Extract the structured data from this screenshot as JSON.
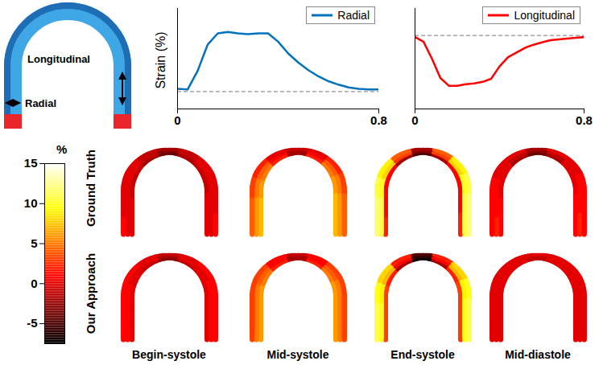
{
  "chart_data": [
    {
      "type": "schematic",
      "annotations": [
        "Radial",
        "Longitudinal"
      ]
    },
    {
      "type": "line",
      "ylabel": "Strain (%)",
      "x": [
        0,
        0.04,
        0.08,
        0.12,
        0.16,
        0.2,
        0.24,
        0.28,
        0.32,
        0.36,
        0.4,
        0.44,
        0.48,
        0.52,
        0.56,
        0.6,
        0.64,
        0.68,
        0.72,
        0.76,
        0.8
      ],
      "series": [
        {
          "name": "Radial",
          "color": "#0072bd",
          "values": [
            0.4,
            0.3,
            3.0,
            6.8,
            8.4,
            8.6,
            8.4,
            8.3,
            8.4,
            8.4,
            7.2,
            5.5,
            4.2,
            3.1,
            2.2,
            1.5,
            1.0,
            0.6,
            0.4,
            0.3,
            0.3
          ]
        }
      ],
      "xlim": [
        0,
        0.8
      ],
      "xticks": [
        0,
        0.8
      ],
      "ylim": [
        -2.5,
        12
      ],
      "tick_labels": "x",
      "legend": "top-right",
      "reference_line": 0
    },
    {
      "type": "line",
      "x": [
        0,
        0.04,
        0.08,
        0.12,
        0.16,
        0.2,
        0.24,
        0.28,
        0.32,
        0.36,
        0.4,
        0.44,
        0.48,
        0.52,
        0.56,
        0.6,
        0.64,
        0.68,
        0.72,
        0.76,
        0.8
      ],
      "series": [
        {
          "name": "Longitudinal",
          "color": "#ff0000",
          "values": [
            -0.2,
            -0.8,
            -3.0,
            -5.5,
            -6.5,
            -6.5,
            -6.3,
            -6.2,
            -6.0,
            -5.6,
            -4.0,
            -2.8,
            -2.2,
            -1.6,
            -1.2,
            -0.9,
            -0.6,
            -0.5,
            -0.4,
            -0.3,
            -0.2
          ]
        }
      ],
      "xlim": [
        0,
        0.8
      ],
      "xticks": [
        0,
        0.8
      ],
      "ylim": [
        -9.5,
        3.5
      ],
      "tick_labels": "x",
      "legend": "top-right",
      "reference_line": 0
    },
    {
      "type": "heatmap",
      "rows": [
        "Ground Truth",
        "Our Approach"
      ],
      "columns": [
        "Begin-systole",
        "Mid-systole",
        "End-systole",
        "Mid-diastole"
      ],
      "cells": [
        [
          [
            [
              0,
              0,
              -1,
              -1,
              -2,
              -4,
              -2,
              -1,
              -1,
              0,
              0
            ],
            [
              0,
              0,
              0,
              0,
              -1,
              -3,
              -1,
              0,
              0,
              0,
              0
            ],
            [
              1,
              0,
              0,
              0,
              -1,
              -2,
              -1,
              0,
              0,
              0,
              1
            ]
          ],
          [
            [
              7,
              7,
              6,
              5,
              2,
              -2,
              2,
              5,
              6,
              7,
              7
            ],
            [
              6,
              6,
              5,
              4,
              1,
              -2,
              1,
              4,
              5,
              6,
              6
            ],
            [
              4,
              4,
              3,
              2,
              0,
              -1,
              0,
              2,
              3,
              4,
              4
            ]
          ],
          [
            [
              2,
              1,
              1,
              1,
              -2,
              -5,
              -2,
              1,
              1,
              1,
              2
            ],
            [
              11,
              11,
              10,
              8,
              3,
              -3,
              3,
              8,
              10,
              11,
              11
            ],
            [
              12,
              12,
              11,
              9,
              4,
              -2,
              4,
              9,
              11,
              12,
              12
            ]
          ],
          [
            [
              1,
              1,
              0,
              0,
              -2,
              -4,
              -2,
              0,
              0,
              1,
              1
            ],
            [
              2,
              1,
              1,
              0,
              -1,
              -3,
              -1,
              0,
              1,
              1,
              2
            ],
            [
              1,
              1,
              1,
              0,
              0,
              -2,
              0,
              0,
              1,
              1,
              1
            ]
          ]
        ],
        [
          [
            [
              0,
              0,
              0,
              0,
              -1,
              -3,
              -1,
              0,
              0,
              0,
              0
            ],
            [
              1,
              1,
              1,
              0,
              0,
              -2,
              0,
              0,
              1,
              1,
              1
            ],
            [
              1,
              1,
              1,
              1,
              0,
              -1,
              0,
              1,
              1,
              1,
              1
            ]
          ],
          [
            [
              6,
              6,
              6,
              5,
              2,
              -2,
              2,
              5,
              6,
              6,
              6
            ],
            [
              5,
              5,
              5,
              4,
              1,
              -2,
              1,
              4,
              5,
              5,
              5
            ],
            [
              3,
              3,
              3,
              3,
              1,
              -1,
              1,
              3,
              3,
              3,
              3
            ]
          ],
          [
            [
              3,
              3,
              3,
              2,
              -2,
              -7,
              -2,
              2,
              3,
              3,
              3
            ],
            [
              10,
              10,
              9,
              7,
              1,
              -6,
              1,
              7,
              9,
              10,
              10
            ],
            [
              11,
              11,
              10,
              8,
              2,
              -5,
              2,
              8,
              10,
              11,
              11
            ]
          ],
          [
            [
              0,
              0,
              0,
              0,
              0,
              -1,
              0,
              0,
              0,
              0,
              0
            ],
            [
              0,
              0,
              0,
              0,
              0,
              -1,
              0,
              0,
              0,
              0,
              0
            ],
            [
              0,
              0,
              0,
              0,
              0,
              0,
              0,
              0,
              0,
              0,
              0
            ]
          ]
        ]
      ],
      "colorbar_label": "%",
      "colorbar_range": [
        -7.5,
        15
      ],
      "colorbar_ticks": [
        -5,
        0,
        5,
        10,
        15
      ]
    }
  ]
}
